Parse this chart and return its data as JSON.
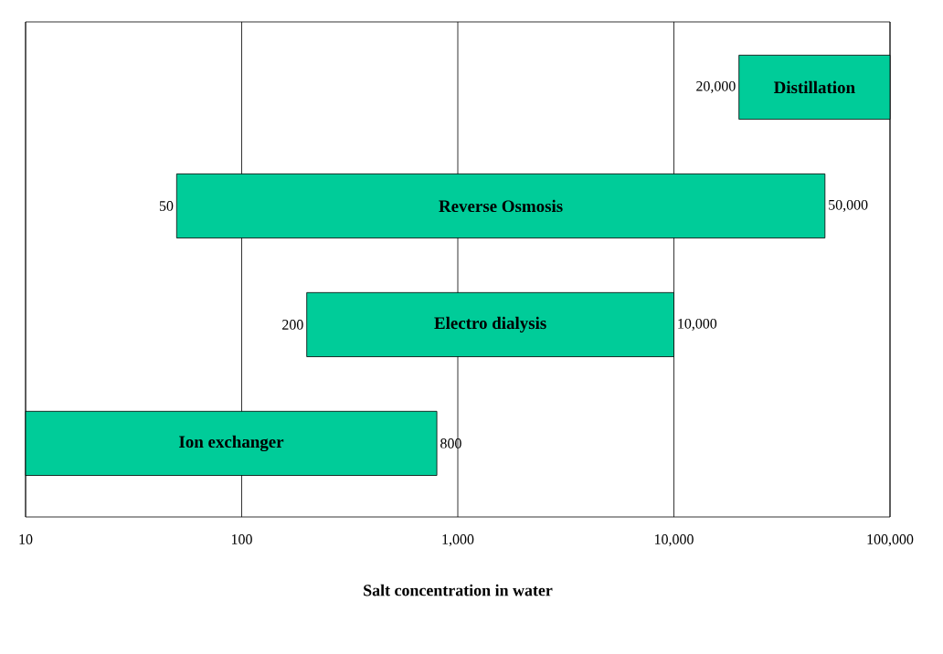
{
  "chart_data": {
    "type": "bar",
    "orientation": "horizontal",
    "log": "x",
    "grid": "x",
    "categories": [
      "Distillation",
      "Reverse Osmosis",
      "Electro dialysis",
      "Ion exchanger"
    ],
    "base": [
      20000,
      50,
      200,
      10
    ],
    "values": [
      80000,
      49950,
      9800,
      790
    ],
    "color": "#00cc99",
    "xlim": [
      10,
      100000
    ],
    "xticks": [
      10,
      100,
      {
        "value": 1000,
        "label": "1,000"
      },
      {
        "value": 10000,
        "label": "10,000"
      },
      {
        "value": 100000,
        "label": "100,000"
      }
    ],
    "xlabel": "Salt concentration in water",
    "annotations": [
      {
        "text": "20,000",
        "x": 20000,
        "y": "Distillation"
      },
      {
        "text": "50",
        "x": 50,
        "y": "Reverse Osmosis"
      },
      {
        "text": "50,000",
        "x": 50000,
        "y": "Reverse Osmosis"
      },
      {
        "text": "200",
        "x": 200,
        "y": "Electro dialysis"
      },
      {
        "text": "10,000",
        "x": 10000,
        "y": "Electro dialysis"
      },
      {
        "text": "800",
        "x": 800,
        "y": "Ion exchanger"
      }
    ]
  }
}
